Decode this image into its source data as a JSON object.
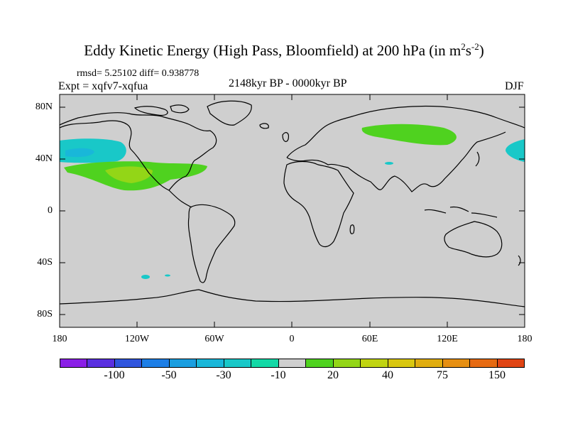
{
  "title": {
    "text": "Eddy Kinetic Energy (High Pass, Bloomfield) at 200 hPa (in m",
    "sup1": "2",
    "mid": "s",
    "sup2": "-2",
    "end": ")"
  },
  "stats": "rmsd= 5.25102 diff= 0.938778",
  "experiment": "Expt = xqfv7-xqfua",
  "period": "2148kyr BP - 0000kyr BP",
  "season": "DJF",
  "lat_labels": [
    "80N",
    "40N",
    "0",
    "40S",
    "80S"
  ],
  "lon_labels": [
    "180",
    "120W",
    "60W",
    "0",
    "60E",
    "120E",
    "180"
  ],
  "colorbar": {
    "labels": [
      "-100",
      "-50",
      "-30",
      "-10",
      "20",
      "40",
      "75",
      "150"
    ],
    "colors": [
      "#8a1ee6",
      "#5a2fe0",
      "#2f55dd",
      "#1c7ee6",
      "#1a9ee0",
      "#19b7d9",
      "#19c8c8",
      "#12d9a6",
      "#cfcfcf",
      "#4fd21f",
      "#93d617",
      "#c0d411",
      "#d9c70f",
      "#e0ad0f",
      "#e68f12",
      "#e66a12",
      "#e04414"
    ]
  },
  "colors": {
    "land_ocean": "#cfcfcf",
    "coast": "#000000"
  }
}
